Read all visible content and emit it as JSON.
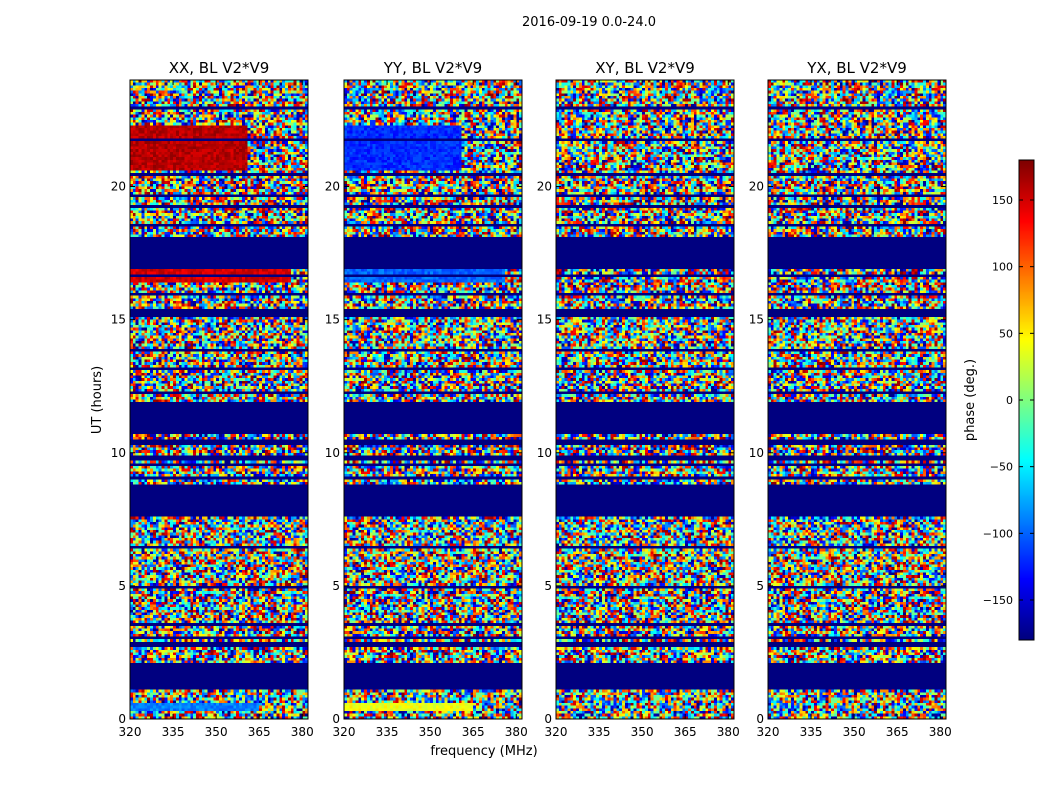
{
  "figure": {
    "suptitle": "2016-09-19 0.0-24.0"
  },
  "chart_data": {
    "type": "heatmap",
    "ylabel": "UT (hours)",
    "xlabel": "frequency (MHz)",
    "xlim": [
      320,
      382
    ],
    "ylim": [
      0,
      24
    ],
    "xticks": [
      "320",
      "335",
      "350",
      "365",
      "380"
    ],
    "xtick_values": [
      320,
      335,
      350,
      365,
      380
    ],
    "yticks": [
      "0",
      "5",
      "10",
      "15",
      "20"
    ],
    "ytick_values": [
      0,
      5,
      10,
      15,
      20
    ],
    "panels": [
      {
        "title": "XX, BL V2*V9",
        "pol": "XX"
      },
      {
        "title": "YY, BL V2*V9",
        "pol": "YY"
      },
      {
        "title": "XY, BL V2*V9",
        "pol": "XY"
      },
      {
        "title": "YX, BL V2*V9",
        "pol": "YX"
      }
    ],
    "flagged_bands_hours": [
      [
        1.1,
        2.0
      ],
      [
        7.6,
        8.8
      ],
      [
        10.7,
        11.9
      ],
      [
        15.1,
        15.4
      ],
      [
        16.9,
        18.1
      ]
    ],
    "coherent_bands": {
      "XX": [
        {
          "from": 20.6,
          "to": 22.3,
          "phase": 160,
          "to_mhz": 361
        },
        {
          "from": 16.4,
          "to": 16.9,
          "phase": 150,
          "to_mhz": 376
        },
        {
          "from": 0.35,
          "to": 0.6,
          "phase": -90,
          "to_mhz": 365
        }
      ],
      "YY": [
        {
          "from": 20.6,
          "to": 22.3,
          "phase": -120,
          "to_mhz": 361
        },
        {
          "from": 16.4,
          "to": 16.9,
          "phase": -100,
          "to_mhz": 376
        },
        {
          "from": 0.3,
          "to": 0.6,
          "phase": 40,
          "to_mhz": 365
        }
      ]
    },
    "colorbar": {
      "label": "phase (deg.)",
      "range": [
        -180,
        180
      ],
      "ticks": [
        "150",
        "100",
        "50",
        "0",
        "−50",
        "−100",
        "−150"
      ],
      "tick_values": [
        150,
        100,
        50,
        0,
        -50,
        -100,
        -150
      ],
      "colormap": "jet"
    }
  }
}
